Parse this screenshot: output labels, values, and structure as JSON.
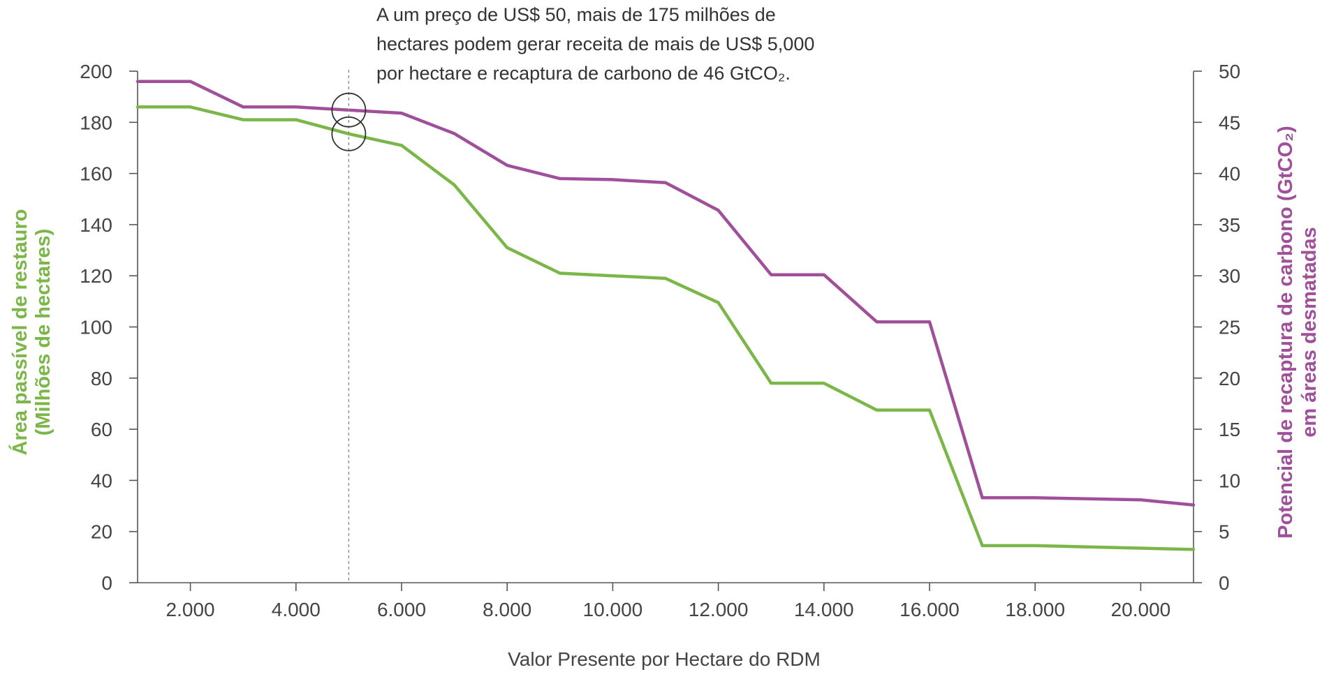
{
  "chart_data": {
    "type": "line",
    "x": [
      1000,
      2000,
      3000,
      4000,
      5000,
      6000,
      7000,
      8000,
      9000,
      10000,
      11000,
      12000,
      13000,
      14000,
      15000,
      16000,
      17000,
      18000,
      19000,
      20000,
      21000
    ],
    "xlim": [
      1000,
      21000
    ],
    "xticks": [
      2000,
      4000,
      6000,
      8000,
      10000,
      12000,
      14000,
      16000,
      18000,
      20000
    ],
    "xtick_labels": [
      "2.000",
      "4.000",
      "6.000",
      "8.000",
      "10.000",
      "12.000",
      "14.000",
      "16.000",
      "18.000",
      "20.000"
    ],
    "xlabel": "Valor Presente por Hectare do RDM",
    "ylabel_left": [
      "Área passível de restauro",
      "(Milhões de hectares)"
    ],
    "ylim_left": [
      0,
      200
    ],
    "yticks_left": [
      0,
      20,
      40,
      60,
      80,
      100,
      120,
      140,
      160,
      180,
      200
    ],
    "ylabel_right": [
      "Potencial de recaptura de carbono (GtCO₂)",
      "em áreas desmatadas"
    ],
    "ylim_right": [
      0,
      50
    ],
    "yticks_right": [
      0,
      5,
      10,
      15,
      20,
      25,
      30,
      35,
      40,
      45,
      50
    ],
    "series": [
      {
        "axis": "left",
        "color": "#7ab648",
        "values": [
          186,
          186,
          181,
          181,
          175.5,
          171,
          155.5,
          131,
          121,
          120,
          119,
          109.5,
          78,
          78,
          67.5,
          67.5,
          14.5,
          14.5,
          14,
          13.5,
          13
        ]
      },
      {
        "axis": "right",
        "color": "#a0509a",
        "values": [
          49,
          49,
          46.5,
          46.5,
          46.2,
          45.9,
          43.9,
          40.8,
          39.5,
          39.4,
          39.1,
          36.4,
          30.1,
          30.1,
          25.5,
          25.5,
          8.3,
          8.3,
          8.2,
          8.1,
          7.6
        ]
      }
    ],
    "annotation": {
      "x": 5000,
      "lines": [
        "A um preço de US$ 50, mais de 175 milhões de",
        "hectares podem gerar receita de mais de US$ 5,000",
        "por hectare e recaptura de carbono de 46 GtCO₂."
      ]
    },
    "grid": false,
    "legend": "none"
  }
}
